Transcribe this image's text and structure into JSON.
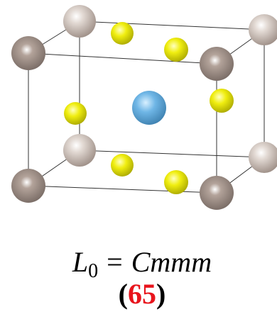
{
  "caption": {
    "symbol": "L",
    "subscript": "0",
    "relation": "=",
    "space_group": "Cmmm",
    "open": "(",
    "number": 65,
    "close": ")"
  }
}
